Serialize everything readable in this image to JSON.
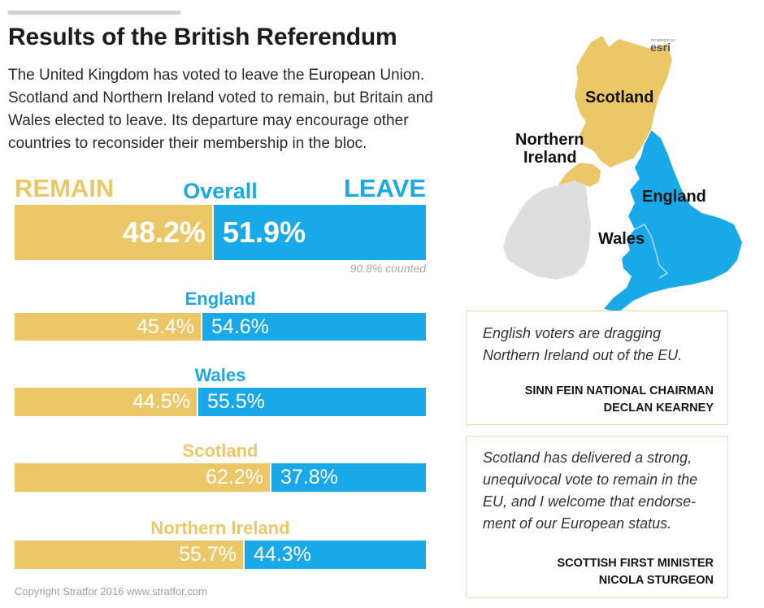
{
  "header": {
    "title": "Results of the British Referendum",
    "intro_lines": [
      "The United Kingdom has voted to leave the European Union.",
      "Scotland and Northern Ireland voted to remain, but Britain and",
      "Wales elected to leave. Its departure may encourage other",
      "countries to reconsider their membership in the bloc."
    ]
  },
  "colors": {
    "remain": "#ecc768",
    "leave": "#1aa9e8",
    "land": "#dedede"
  },
  "chart_data": {
    "type": "bar",
    "orientation": "horizontal-stacked",
    "series_labels": {
      "remain": "REMAIN",
      "leave": "LEAVE"
    },
    "overall": {
      "label": "Overall",
      "remain": 48.2,
      "leave": 51.9,
      "remain_text": "48.2%",
      "leave_text": "51.9%"
    },
    "counted_note": "90.8% counted",
    "regions": [
      {
        "label": "England",
        "remain": 45.4,
        "leave": 54.6,
        "remain_text": "45.4%",
        "leave_text": "54.6%"
      },
      {
        "label": "Wales",
        "remain": 44.5,
        "leave": 55.5,
        "remain_text": "44.5%",
        "leave_text": "55.5%"
      },
      {
        "label": "Scotland",
        "remain": 62.2,
        "leave": 37.8,
        "remain_text": "62.2%",
        "leave_text": "37.8%"
      },
      {
        "label": "Northern Ireland",
        "remain": 55.7,
        "leave": 44.3,
        "remain_text": "55.7%",
        "leave_text": "44.3%"
      }
    ]
  },
  "map": {
    "labels": [
      "Scotland",
      "Northern Ireland",
      "England",
      "Wales"
    ],
    "ni_label_lines": [
      "Northern",
      "Ireland"
    ],
    "credit_small": "POWERED BY",
    "credit": "esri"
  },
  "quotes": [
    {
      "text_lines": [
        "English voters are dragging",
        "Northern Ireland out of the EU."
      ],
      "source_lines": [
        "SINN FEIN NATIONAL CHAIRMAN",
        "DECLAN KEARNEY"
      ]
    },
    {
      "text_lines": [
        "Scotland has delivered a strong,",
        "unequivocal vote to remain in the",
        "EU, and I welcome that endorse-",
        "ment of our European status."
      ],
      "source_lines": [
        "SCOTTISH FIRST MINISTER",
        "NICOLA STURGEON"
      ]
    }
  ],
  "footer": {
    "copyright": "Copyright Stratfor 2016   www.stratfor.com"
  }
}
